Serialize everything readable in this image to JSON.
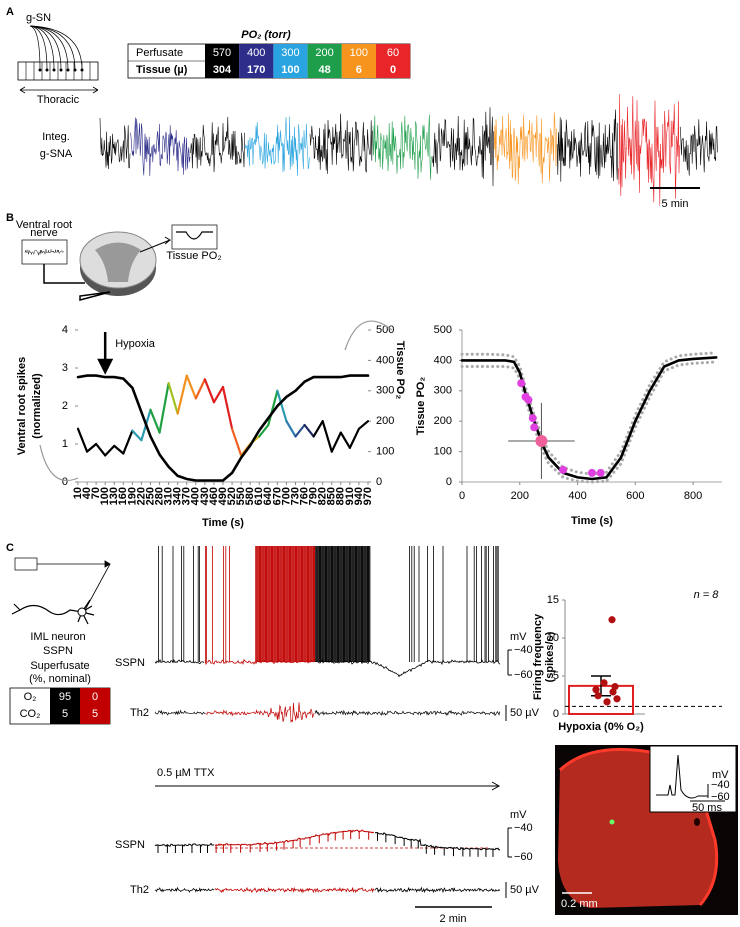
{
  "panel_labels": [
    "A",
    "B",
    "C"
  ],
  "panel_a": {
    "nerve": "g-SN",
    "region": "Thoracic",
    "table": {
      "title": "PO₂ (torr)",
      "row_labels": [
        "Perfusate",
        "Tissue (µ)"
      ],
      "perfusate": [
        570,
        400,
        300,
        200,
        100,
        60
      ],
      "tissue": [
        304,
        170,
        100,
        48,
        6,
        0
      ],
      "colors": [
        "#000000",
        "#2d2d8a",
        "#2aa4e0",
        "#1e9e4a",
        "#f7941d",
        "#e8262a"
      ]
    },
    "trace_label": [
      "Integ.",
      "g-SNA"
    ],
    "scale_bar": "5 min"
  },
  "panel_b": {
    "nerve_label": [
      "Ventral root",
      "nerve"
    ],
    "probe_label": "Tissue PO₂"
  },
  "chart_data": [
    {
      "type": "line",
      "x": [
        10,
        40,
        70,
        100,
        130,
        160,
        190,
        220,
        250,
        280,
        310,
        340,
        370,
        400,
        430,
        460,
        490,
        520,
        550,
        580,
        610,
        640,
        670,
        700,
        730,
        760,
        790,
        820,
        850,
        880,
        910,
        940,
        970
      ],
      "xlim": [
        10,
        970
      ],
      "xticks": [
        10,
        40,
        70,
        100,
        130,
        160,
        190,
        220,
        250,
        280,
        310,
        340,
        370,
        400,
        430,
        460,
        490,
        520,
        550,
        580,
        610,
        640,
        670,
        700,
        730,
        760,
        790,
        820,
        850,
        880,
        910,
        940,
        970
      ],
      "ylim": [
        0,
        4
      ],
      "yticks": [
        0,
        1,
        2,
        3,
        4
      ],
      "y2lim": [
        0,
        500
      ],
      "y2ticks": [
        0,
        100,
        200,
        300,
        400,
        500
      ],
      "xlabel": "Time (s)",
      "ylabel": [
        "Ventral root spikes",
        "(normalized)"
      ],
      "y2label": "Tissue PO₂",
      "annotation": "Hypoxia",
      "series": [
        {
          "color": "#000000",
          "values": [
            1.4,
            0.8,
            1.0,
            0.7,
            0.95,
            0.75,
            1.35,
            1.1,
            1.9,
            1.3,
            2.6,
            1.8,
            2.8,
            2.2,
            2.7,
            2.1,
            2.5,
            1.4,
            0.7,
            1.0,
            1.2,
            1.5,
            2.4,
            1.6,
            1.2,
            1.5,
            1.2,
            1.6,
            0.8,
            1.3,
            0.9,
            1.4,
            1.6
          ],
          "segment_colors": [
            "#000000",
            "#000000",
            "#000000",
            "#000000",
            "#000000",
            "#000000",
            "#2a9ab0",
            "#2a9ab0",
            "#20a040",
            "#20a040",
            "#a0c020",
            "#f09020",
            "#f09020",
            "#f06020",
            "#e02020",
            "#e02020",
            "#e02020",
            "#f06020",
            "#f09020",
            "#e0c020",
            "#20a040",
            "#20a040",
            "#2a9ab0",
            "#2a7ab0",
            "#2a5090",
            "#1a2a60",
            "#000000",
            "#000000",
            "#000000",
            "#000000",
            "#000000",
            "#000000"
          ]
        },
        {
          "axis": "y2",
          "color": "#000000",
          "values": [
            345,
            350,
            350,
            345,
            345,
            340,
            310,
            230,
            150,
            90,
            50,
            20,
            10,
            5,
            5,
            5,
            5,
            30,
            80,
            120,
            170,
            210,
            250,
            280,
            300,
            330,
            345,
            345,
            345,
            345,
            350,
            350,
            350
          ]
        }
      ]
    },
    {
      "type": "line",
      "xlim": [
        0,
        900
      ],
      "xticks": [
        0,
        200,
        400,
        600,
        800
      ],
      "ylim": [
        0,
        500
      ],
      "yticks": [
        0,
        100,
        200,
        300,
        400,
        500
      ],
      "xlabel": "Time (s)",
      "ylabel": "Tissue PO₂",
      "series": [
        {
          "color": "#aaaaaa",
          "dashed": true,
          "x": [
            0,
            100,
            150,
            180,
            200,
            220,
            250,
            280,
            300,
            350,
            400,
            450,
            500,
            550,
            600,
            650,
            700,
            750,
            800,
            880
          ],
          "values": [
            420,
            420,
            418,
            412,
            380,
            310,
            220,
            140,
            100,
            48,
            32,
            26,
            32,
            100,
            220,
            320,
            395,
            415,
            420,
            425
          ]
        },
        {
          "color": "#aaaaaa",
          "dashed": true,
          "x": [
            0,
            100,
            150,
            180,
            200,
            220,
            250,
            280,
            300,
            350,
            400,
            450,
            500,
            550,
            600,
            650,
            700,
            750,
            800,
            880
          ],
          "values": [
            380,
            380,
            380,
            375,
            340,
            270,
            180,
            100,
            60,
            15,
            3,
            0,
            3,
            60,
            180,
            280,
            365,
            385,
            390,
            395
          ]
        },
        {
          "color": "#000000",
          "x": [
            0,
            100,
            150,
            180,
            200,
            220,
            250,
            280,
            300,
            350,
            400,
            450,
            500,
            550,
            600,
            650,
            700,
            750,
            800,
            880
          ],
          "values": [
            400,
            400,
            400,
            395,
            360,
            290,
            200,
            120,
            80,
            30,
            15,
            10,
            15,
            80,
            200,
            300,
            380,
            400,
            405,
            410
          ]
        }
      ],
      "points": {
        "color": "#e040e0",
        "x": [
          205,
          220,
          230,
          245,
          250,
          350,
          450,
          480
        ],
        "values": [
          325,
          280,
          270,
          210,
          180,
          40,
          30,
          30
        ]
      },
      "mean_point": {
        "color": "#f0609a",
        "x": 275,
        "y": 135,
        "x_err": 115,
        "y_err": 125
      }
    },
    {
      "type": "bar",
      "categories": [
        "Hypoxia (0% O₂)"
      ],
      "values": [
        3.7
      ],
      "errors": [
        1.3
      ],
      "color": "#e02020",
      "points": [
        12.4,
        4.1,
        3.6,
        3.2,
        2.9,
        2.4,
        2.0,
        1.6
      ],
      "point_color": "#b01010",
      "baseline": 1,
      "ylim": [
        0,
        15
      ],
      "yticks": [
        0,
        5,
        10,
        15
      ],
      "ylabel": [
        "Firing frequency",
        "(spikes/s)"
      ],
      "annotation": "n = 8"
    }
  ],
  "panel_c": {
    "cell": [
      "IML neuron",
      "SSPN"
    ],
    "superfusate": [
      "Superfusate",
      "(%, nominal)"
    ],
    "gas_table": {
      "rows": [
        [
          "O₂",
          95,
          0
        ],
        [
          "CO₂",
          5,
          5
        ]
      ],
      "colors": [
        "#000000",
        "#c00000"
      ]
    },
    "trace_labels": [
      "SSPN",
      "Th2"
    ],
    "mv_unit": "mV",
    "mv_ticks": [
      "−40",
      "−60"
    ],
    "uv_scale": "50 µV",
    "drug": "0.5 µM TTX",
    "time_scale": "2 min",
    "image_scale": "0.2 mm",
    "inset": {
      "unit": "mV",
      "ticks": [
        "−40",
        "−60"
      ],
      "time_scale": "50 ms"
    }
  }
}
